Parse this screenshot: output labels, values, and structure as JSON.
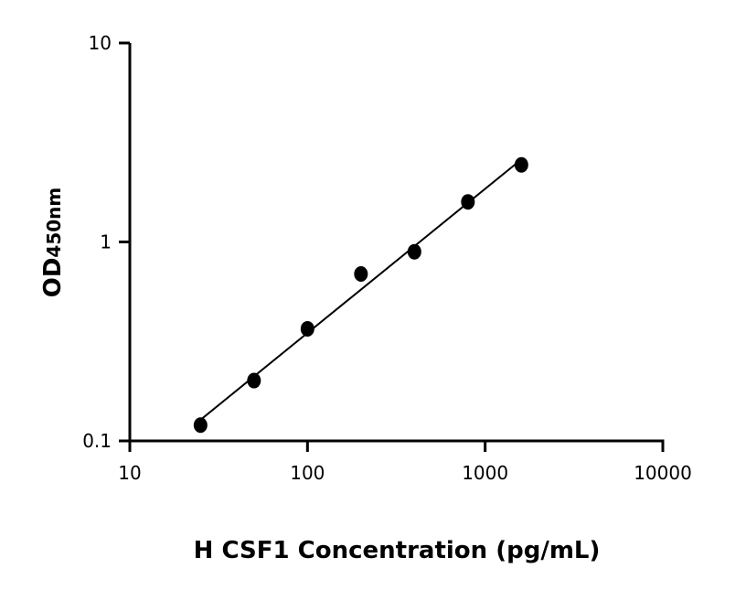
{
  "chart_data": {
    "type": "scatter",
    "title": "",
    "xlabel": "H CSF1 Concentration (pg/mL)",
    "ylabel_main": "OD",
    "ylabel_sub": "450nm",
    "x_scale": "log",
    "y_scale": "log",
    "xlim": [
      10,
      10000
    ],
    "ylim": [
      0.1,
      10
    ],
    "x_ticks": [
      "10",
      "100",
      "1000",
      "10000"
    ],
    "y_ticks": [
      "0.1",
      "1",
      "10"
    ],
    "grid": false,
    "series": [
      {
        "x": [
          25,
          50,
          100,
          200,
          400,
          800,
          1600
        ],
        "y": [
          0.12,
          0.201,
          0.366,
          0.69,
          0.893,
          1.59,
          2.44
        ],
        "marker": "circle",
        "color": "#000000",
        "fit_line": true
      }
    ]
  }
}
